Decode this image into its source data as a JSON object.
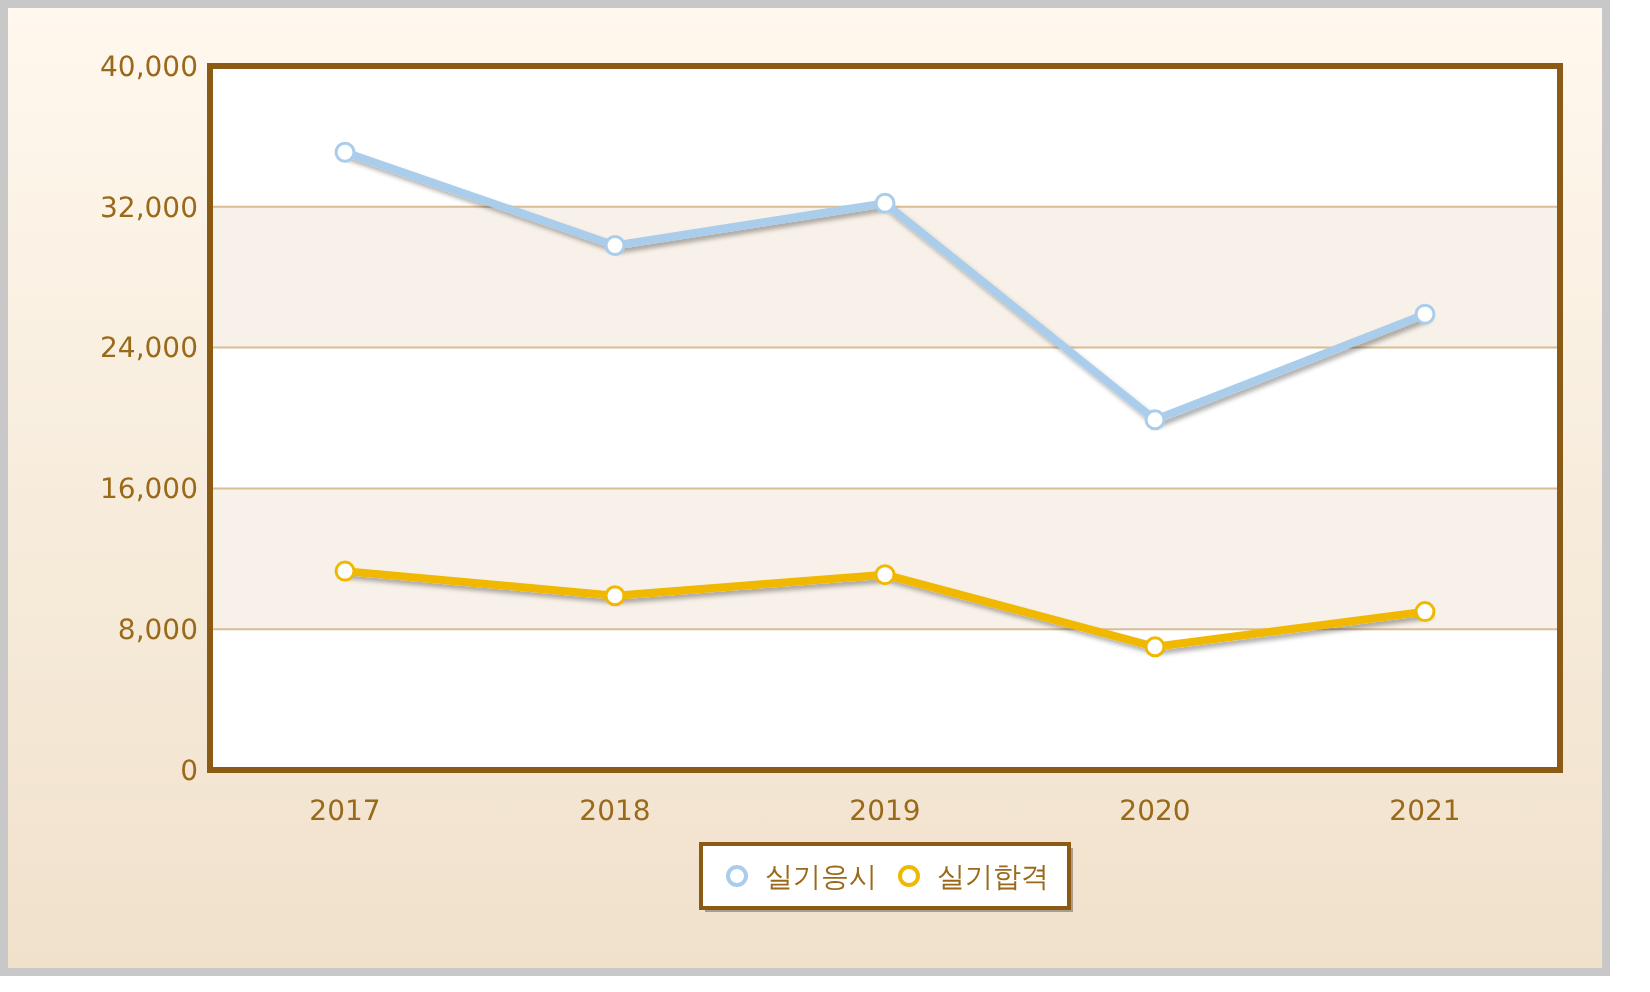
{
  "chart_data": {
    "type": "line",
    "categories": [
      "2017",
      "2018",
      "2019",
      "2020",
      "2021"
    ],
    "series": [
      {
        "name": "실기응시",
        "color": "#a9cdea",
        "values": [
          35100,
          29800,
          32200,
          19900,
          25900
        ]
      },
      {
        "name": "실기합격",
        "color": "#f0b800",
        "values": [
          11300,
          9900,
          11100,
          7000,
          9000
        ]
      }
    ],
    "ylim": [
      0,
      40000
    ],
    "yticks": [
      {
        "value": 0,
        "label": "0"
      },
      {
        "value": 8000,
        "label": "8,000"
      },
      {
        "value": 16000,
        "label": "16,000"
      },
      {
        "value": 24000,
        "label": "24,000"
      },
      {
        "value": 32000,
        "label": "32,000"
      },
      {
        "value": 40000,
        "label": "40,000"
      }
    ],
    "grid": "y",
    "legend": "bottom",
    "marker": "circle",
    "line_style": "solid"
  }
}
